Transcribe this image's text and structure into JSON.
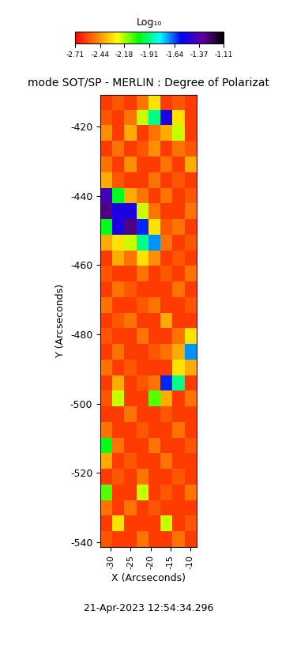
{
  "chart_data": {
    "type": "heatmap",
    "title": "mode SOT/SP - MERLIN : Degree of Polarizat",
    "x_label": "X (Arcseconds)",
    "y_label": "Y (Arcseconds)",
    "xlim": [
      -32.6,
      -8.4
    ],
    "xticks": [
      -30,
      -25,
      -20,
      -15,
      -10
    ],
    "ylim": [
      -541.4,
      -410.9
    ],
    "yticks": [
      -540,
      -520,
      -500,
      -480,
      -460,
      -440,
      -420
    ],
    "colorbar_title": "Log₁₀",
    "colorbar_range": [
      -2.71,
      -1.11
    ],
    "colorbar_ticks": [
      -2.71,
      -2.44,
      -2.18,
      -1.91,
      -1.64,
      -1.37,
      -1.11
    ],
    "timestamp": "21-Apr-2023 12:54:34.296",
    "cells": [
      [
        -2.6,
        -2.55,
        -2.6,
        -2.5,
        -2.3,
        -2.6,
        -2.55,
        -2.6
      ],
      [
        -2.55,
        -2.6,
        -2.5,
        -2.2,
        -1.9,
        -1.5,
        -2.3,
        -2.6
      ],
      [
        -2.45,
        -2.6,
        -2.4,
        -2.6,
        -2.5,
        -2.4,
        -2.2,
        -2.6
      ],
      [
        -2.6,
        -2.5,
        -2.6,
        -2.55,
        -2.45,
        -2.6,
        -2.5,
        -2.55
      ],
      [
        -2.5,
        -2.6,
        -2.45,
        -2.6,
        -2.6,
        -2.5,
        -2.6,
        -2.4
      ],
      [
        -2.4,
        -2.55,
        -2.6,
        -2.6,
        -2.5,
        -2.6,
        -2.55,
        -2.6
      ],
      [
        -1.4,
        -2.0,
        -2.4,
        -2.5,
        -2.6,
        -2.5,
        -2.6,
        -2.55
      ],
      [
        -1.3,
        -1.5,
        -1.5,
        -2.2,
        -2.5,
        -2.6,
        -2.6,
        -2.5
      ],
      [
        -2.0,
        -1.5,
        -1.3,
        -1.6,
        -2.3,
        -2.55,
        -2.5,
        -2.6
      ],
      [
        -2.4,
        -2.3,
        -2.2,
        -1.9,
        -1.7,
        -2.5,
        -2.6,
        -2.55
      ],
      [
        -2.6,
        -2.4,
        -2.5,
        -2.3,
        -2.45,
        -2.6,
        -2.55,
        -2.6
      ],
      [
        -2.55,
        -2.6,
        -2.6,
        -2.5,
        -2.6,
        -2.55,
        -2.6,
        -2.5
      ],
      [
        -2.6,
        -2.5,
        -2.55,
        -2.6,
        -2.6,
        -2.6,
        -2.5,
        -2.6
      ],
      [
        -2.5,
        -2.6,
        -2.6,
        -2.55,
        -2.5,
        -2.6,
        -2.6,
        -2.55
      ],
      [
        -2.6,
        -2.55,
        -2.5,
        -2.6,
        -2.6,
        -2.4,
        -2.6,
        -2.6
      ],
      [
        -2.55,
        -2.6,
        -2.6,
        -2.5,
        -2.6,
        -2.6,
        -2.5,
        -2.3
      ],
      [
        -2.6,
        -2.5,
        -2.6,
        -2.6,
        -2.55,
        -2.5,
        -2.4,
        -1.7
      ],
      [
        -2.5,
        -2.6,
        -2.55,
        -2.6,
        -2.6,
        -2.6,
        -2.3,
        -2.4
      ],
      [
        -2.6,
        -2.4,
        -2.6,
        -2.55,
        -2.5,
        -1.6,
        -1.9,
        -2.6
      ],
      [
        -2.55,
        -2.2,
        -2.6,
        -2.6,
        -2.1,
        -2.4,
        -2.6,
        -2.5
      ],
      [
        -2.6,
        -2.6,
        -2.5,
        -2.6,
        -2.6,
        -2.55,
        -2.6,
        -2.6
      ],
      [
        -2.5,
        -2.6,
        -2.6,
        -2.55,
        -2.6,
        -2.6,
        -2.5,
        -2.6
      ],
      [
        -2.0,
        -2.5,
        -2.6,
        -2.6,
        -2.5,
        -2.6,
        -2.6,
        -2.55
      ],
      [
        -2.4,
        -2.6,
        -2.55,
        -2.6,
        -2.6,
        -2.5,
        -2.6,
        -2.6
      ],
      [
        -2.6,
        -2.55,
        -2.6,
        -2.5,
        -2.6,
        -2.6,
        -2.55,
        -2.6
      ],
      [
        -2.1,
        -2.6,
        -2.6,
        -2.2,
        -2.6,
        -2.55,
        -2.6,
        -2.5
      ],
      [
        -2.5,
        -2.6,
        -2.5,
        -2.6,
        -2.55,
        -2.6,
        -2.6,
        -2.6
      ],
      [
        -2.6,
        -2.3,
        -2.6,
        -2.6,
        -2.6,
        -2.2,
        -2.6,
        -2.55
      ],
      [
        -2.55,
        -2.6,
        -2.6,
        -2.5,
        -2.6,
        -2.6,
        -2.5,
        -2.6
      ]
    ]
  }
}
